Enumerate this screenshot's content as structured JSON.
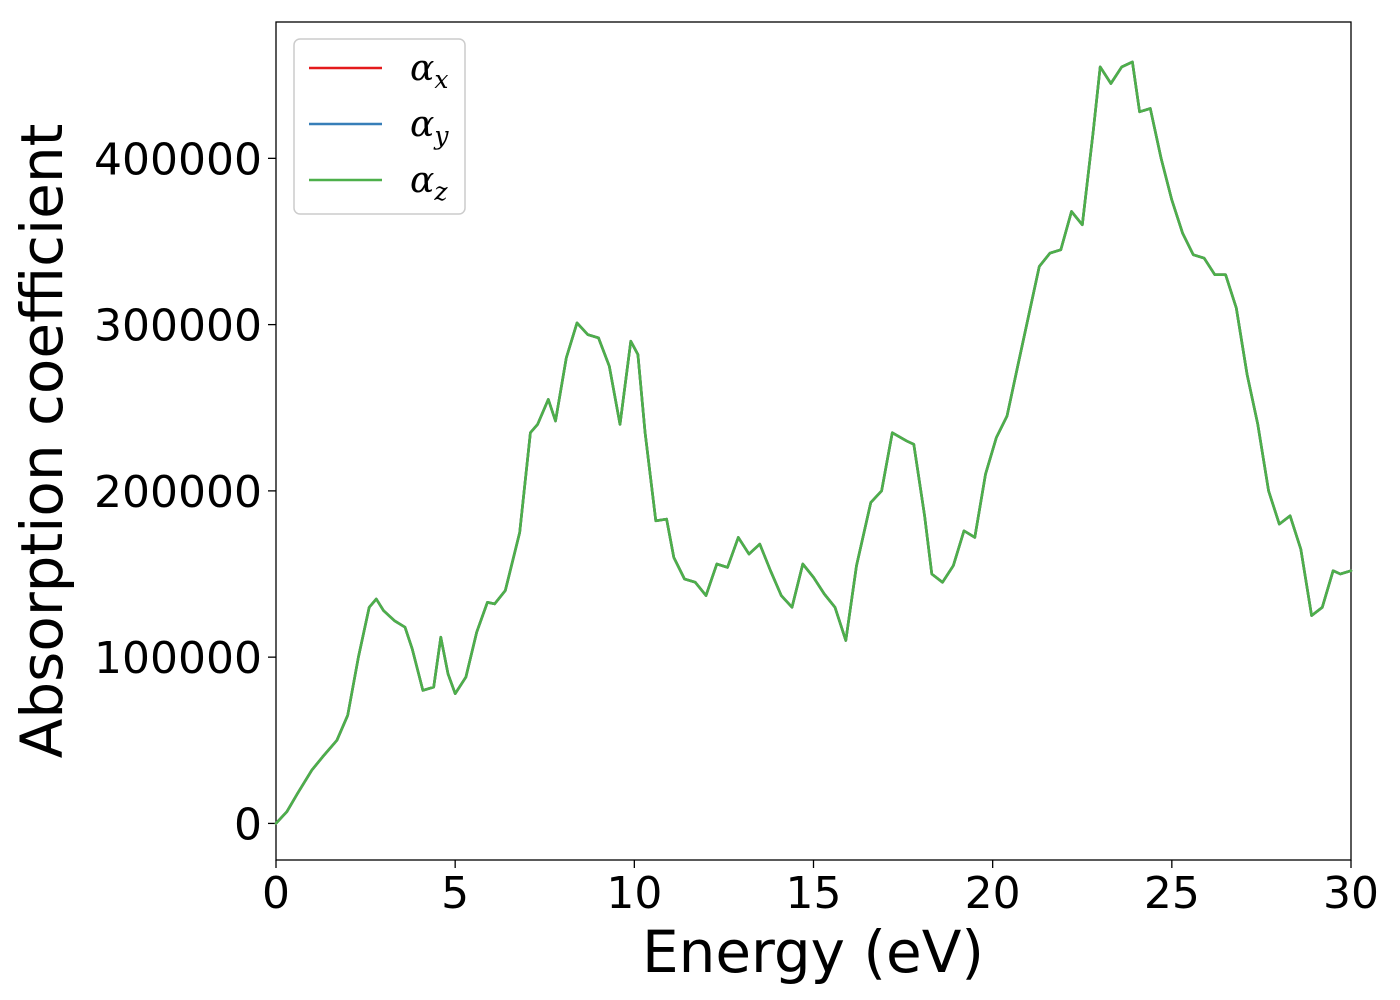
{
  "chart_data": {
    "type": "line",
    "title": "",
    "xlabel": "Energy (eV)",
    "ylabel": "Absorption coefficient",
    "xlim": [
      0,
      30
    ],
    "ylim": [
      -22000,
      482000
    ],
    "xticks": [
      "0",
      "5",
      "10",
      "15",
      "20",
      "25",
      "30"
    ],
    "yticks": [
      "0",
      "100000",
      "200000",
      "300000",
      "400000"
    ],
    "grid": false,
    "legend_position": "top-left",
    "series": [
      {
        "name": "α",
        "subscript": "x",
        "color": "#e41a1c"
      },
      {
        "name": "α",
        "subscript": "y",
        "color": "#377eb8"
      },
      {
        "name": "α",
        "subscript": "z",
        "color": "#4daf4a"
      }
    ],
    "x": [
      0,
      0.3,
      0.6,
      1.0,
      1.3,
      1.7,
      2.0,
      2.3,
      2.6,
      2.8,
      3.0,
      3.3,
      3.6,
      3.8,
      4.1,
      4.4,
      4.6,
      4.8,
      5.0,
      5.3,
      5.6,
      5.9,
      6.1,
      6.4,
      6.8,
      7.1,
      7.3,
      7.6,
      7.8,
      8.1,
      8.4,
      8.7,
      9.0,
      9.3,
      9.6,
      9.9,
      10.1,
      10.3,
      10.6,
      10.9,
      11.1,
      11.4,
      11.7,
      12.0,
      12.3,
      12.6,
      12.9,
      13.2,
      13.5,
      13.8,
      14.1,
      14.4,
      14.7,
      15.0,
      15.3,
      15.6,
      15.9,
      16.2,
      16.6,
      16.9,
      17.2,
      17.6,
      17.8,
      18.1,
      18.3,
      18.6,
      18.9,
      19.2,
      19.5,
      19.8,
      20.1,
      20.4,
      20.7,
      21.0,
      21.3,
      21.6,
      21.9,
      22.2,
      22.5,
      22.8,
      23.0,
      23.3,
      23.6,
      23.9,
      24.1,
      24.4,
      24.7,
      25.0,
      25.3,
      25.6,
      25.9,
      26.2,
      26.5,
      26.8,
      27.1,
      27.4,
      27.7,
      28.0,
      28.3,
      28.6,
      28.9,
      29.2,
      29.5,
      29.7,
      30.0
    ],
    "y": [
      0,
      7000,
      18000,
      32000,
      40000,
      50000,
      65000,
      100000,
      130000,
      135000,
      128000,
      122000,
      118000,
      105000,
      80000,
      82000,
      112000,
      90000,
      78000,
      88000,
      115000,
      133000,
      132000,
      140000,
      175000,
      235000,
      240000,
      255000,
      242000,
      280000,
      301000,
      294000,
      292000,
      275000,
      240000,
      290000,
      282000,
      235000,
      182000,
      183000,
      160000,
      147000,
      145000,
      137000,
      156000,
      154000,
      172000,
      162000,
      168000,
      152000,
      137000,
      130000,
      156000,
      148000,
      138000,
      130000,
      110000,
      155000,
      193000,
      200000,
      235000,
      230000,
      228000,
      185000,
      150000,
      145000,
      155000,
      176000,
      172000,
      210000,
      232000,
      245000,
      275000,
      305000,
      335000,
      343000,
      345000,
      368000,
      360000,
      415000,
      455000,
      445000,
      455000,
      458000,
      428000,
      430000,
      400000,
      375000,
      355000,
      342000,
      340000,
      330000,
      330000,
      310000,
      270000,
      240000,
      200000,
      180000,
      185000,
      165000,
      125000,
      130000,
      152000,
      150000,
      152000
    ]
  }
}
